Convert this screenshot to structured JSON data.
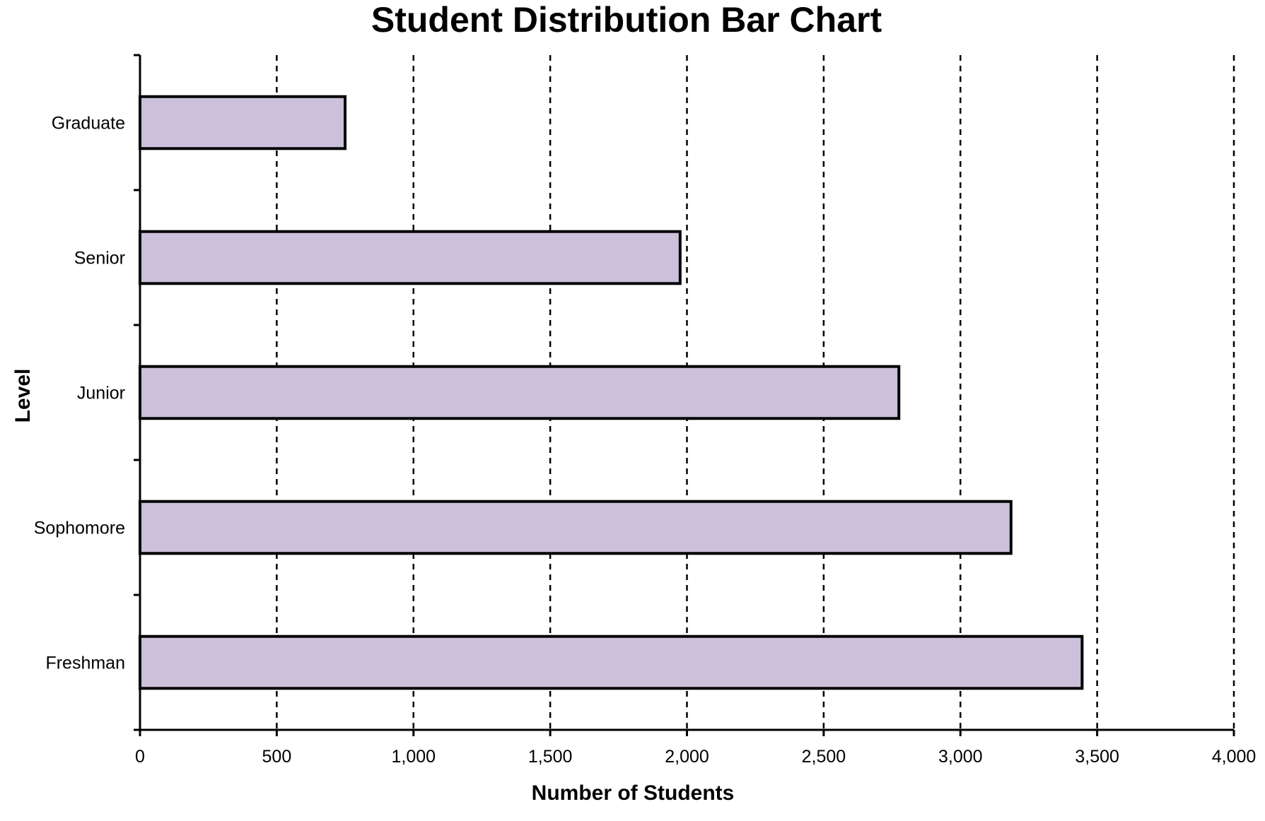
{
  "chart_data": {
    "type": "bar",
    "orientation": "horizontal",
    "title": "Student Distribution Bar Chart",
    "xlabel": "Number of Students",
    "ylabel": "Level",
    "categories": [
      "Graduate",
      "Senior",
      "Junior",
      "Sophomore",
      "Freshman"
    ],
    "values": [
      750,
      1975,
      2775,
      3185,
      3445
    ],
    "xlim": [
      0,
      4000
    ],
    "x_ticks": [
      0,
      500,
      1000,
      1500,
      2000,
      2500,
      3000,
      3500,
      4000
    ],
    "x_tick_labels": [
      "0",
      "500",
      "1,000",
      "1,500",
      "2,000",
      "2,500",
      "3,000",
      "3,500",
      "4,000"
    ],
    "grid": "vertical dashed",
    "legend": "none",
    "bar_color": "#CBC1DB",
    "bar_edge_color": "#000000"
  }
}
